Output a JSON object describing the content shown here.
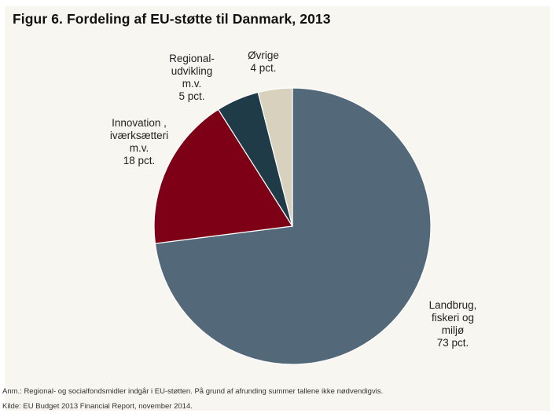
{
  "chart_data": {
    "type": "pie",
    "title": "Figur 6. Fordeling af EU-støtte til Danmark, 2013",
    "start_angle_deg": 0,
    "direction": "clockwise",
    "slices": [
      {
        "label_lines": [
          "Landbrug,",
          "fiskeri og",
          "miljø"
        ],
        "value_label": "73 pct.",
        "value": 73,
        "color": "#536878"
      },
      {
        "label_lines": [
          "Innovation ,",
          "iværksætteri",
          "m.v."
        ],
        "value_label": "18 pct.",
        "value": 18,
        "color": "#7e0017"
      },
      {
        "label_lines": [
          "Regional-",
          "udvikling",
          "m.v."
        ],
        "value_label": "5 pct.",
        "value": 5,
        "color": "#1e3b47"
      },
      {
        "label_lines": [
          "Øvrige"
        ],
        "value_label": "4 pct.",
        "value": 4,
        "color": "#d8d1bd"
      }
    ]
  },
  "footnotes": {
    "note": "Anm.: Regional- og socialfondsmidler indgår i EU-støtten. På grund af afrunding summer tallene ikke nødvendigvis.",
    "source": "Kilde: EU Budget 2013 Financial Report, november 2014."
  }
}
